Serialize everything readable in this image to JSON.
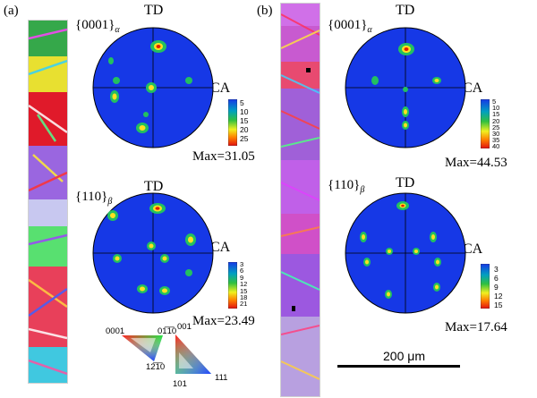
{
  "panels": [
    {
      "label": "(a)",
      "top_pf": {
        "title": "{0001}",
        "subscript": "α",
        "td": "TD",
        "ca": "CA",
        "legend_ticks": [
          "5",
          "10",
          "15",
          "20",
          "25"
        ],
        "max": "Max=31.05"
      },
      "bottom_pf": {
        "title": "{110}",
        "subscript": "β",
        "td": "TD",
        "ca": "CA",
        "legend_ticks": [
          "3",
          "6",
          "9",
          "12",
          "15",
          "18",
          "21"
        ],
        "max": "Max=23.49"
      }
    },
    {
      "label": "(b)",
      "top_pf": {
        "title": "{0001}",
        "subscript": "α",
        "td": "TD",
        "ca": "CA",
        "legend_ticks": [
          "5",
          "10",
          "15",
          "20",
          "25",
          "30",
          "35",
          "40"
        ],
        "max": "Max=44.53"
      },
      "bottom_pf": {
        "title": "{110}",
        "subscript": "β",
        "td": "TD",
        "ca": "CA",
        "legend_ticks": [
          "3",
          "6",
          "9",
          "12",
          "15"
        ],
        "max": "Max=17.64"
      }
    }
  ],
  "ipf_keys": {
    "hex": {
      "top_left": "0001",
      "top_right": "01̅1̅0",
      "bottom": "12̅1̅0"
    },
    "cubic": {
      "top": "001",
      "bottom_left": "101",
      "bottom_right": "111"
    }
  },
  "scale_bar": {
    "label": "200 μm"
  },
  "colors": {
    "pf_background": "#1638e6",
    "pf_outline": "#000000"
  }
}
